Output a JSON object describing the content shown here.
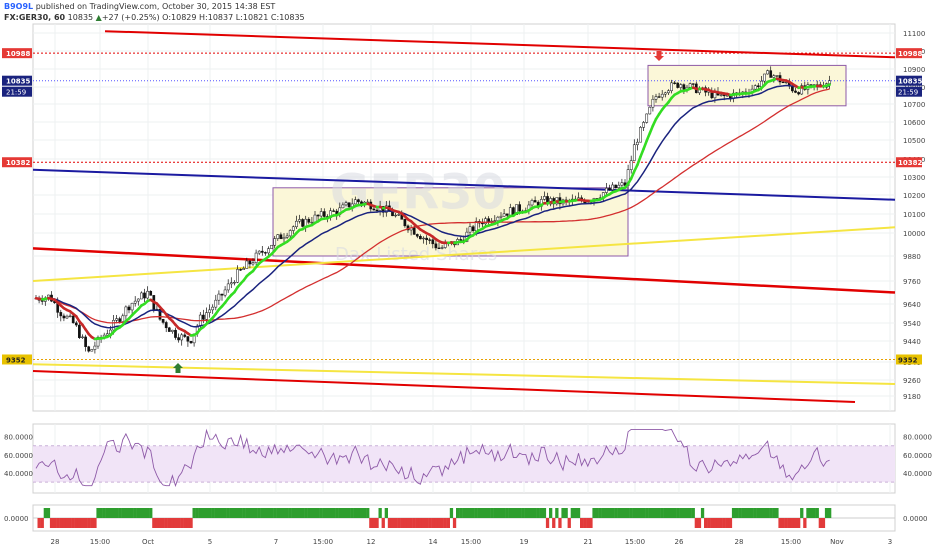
{
  "header": {
    "author": "B9O9L",
    "published": "published on TradingView.com, October 30, 2015 14:38 EST",
    "symbol": "FX:GER30, 60",
    "last": "10835",
    "change": "+27 (+0.25%)",
    "open": "O:10829",
    "high": "H:10837",
    "low": "L:10821",
    "close": "C:10835"
  },
  "colors": {
    "up": "#2e7d32",
    "down": "#b71c1c",
    "ema_fast": "#c62828",
    "ema_green": "#33dd22",
    "ma_blue": "#1a237e",
    "ma_red": "#d32f2f",
    "channel_red": "#e10000",
    "channel_yellow": "#f5e542",
    "channel_blue": "#1a1aa0",
    "box_fill": "#fbf7d8",
    "rsi": "#8e5aa8",
    "rsi_band": "#f1e4f7",
    "label_red": "#e53935",
    "label_blue": "#1a237e"
  },
  "chart_data": [
    {
      "type": "line",
      "subtype": "candlestick",
      "ylim": [
        9120,
        11140
      ],
      "yticks": [
        9180,
        9260,
        9340,
        9440,
        9540,
        9640,
        9760,
        9880,
        10000,
        10100,
        10200,
        10300,
        10400,
        10500,
        10600,
        10700,
        10800,
        10900,
        11000,
        11100
      ],
      "x_tick_labels": [
        "28",
        "15:00",
        "Oct",
        "5",
        "7",
        "15:00",
        "12",
        "14",
        "15:00",
        "19",
        "21",
        "15:00",
        "26",
        "28",
        "15:00",
        "Nov",
        "3"
      ],
      "price_labels": [
        {
          "value": 10988,
          "text": "10988",
          "color": "#e53935"
        },
        {
          "value": 10835,
          "text": "10835",
          "color": "#1a237e"
        },
        {
          "value": 10382,
          "text": "10382",
          "color": "#e53935"
        },
        {
          "value": 9352,
          "text": "9352",
          "color": "#e8c200"
        }
      ],
      "countdown": "21:59",
      "watermark": "GER30",
      "watermark_sub": "Dax Listed Shares",
      "annotations": [
        {
          "kind": "arrow-up",
          "color": "#2e7d32"
        },
        {
          "kind": "arrow-down",
          "color": "#e53935"
        }
      ],
      "horizontal_levels": [
        10988,
        10382,
        9352
      ]
    },
    {
      "type": "line",
      "name": "",
      "ylim": [
        18,
        94
      ],
      "yticks": [
        40,
        60,
        80
      ],
      "ytick_labels": [
        "40.0000",
        "60.0000",
        "80.0000"
      ],
      "band": [
        30,
        70
      ]
    },
    {
      "type": "bar",
      "ylim": [
        -1,
        1
      ],
      "ytick_labels": [
        "0.0000"
      ]
    }
  ]
}
